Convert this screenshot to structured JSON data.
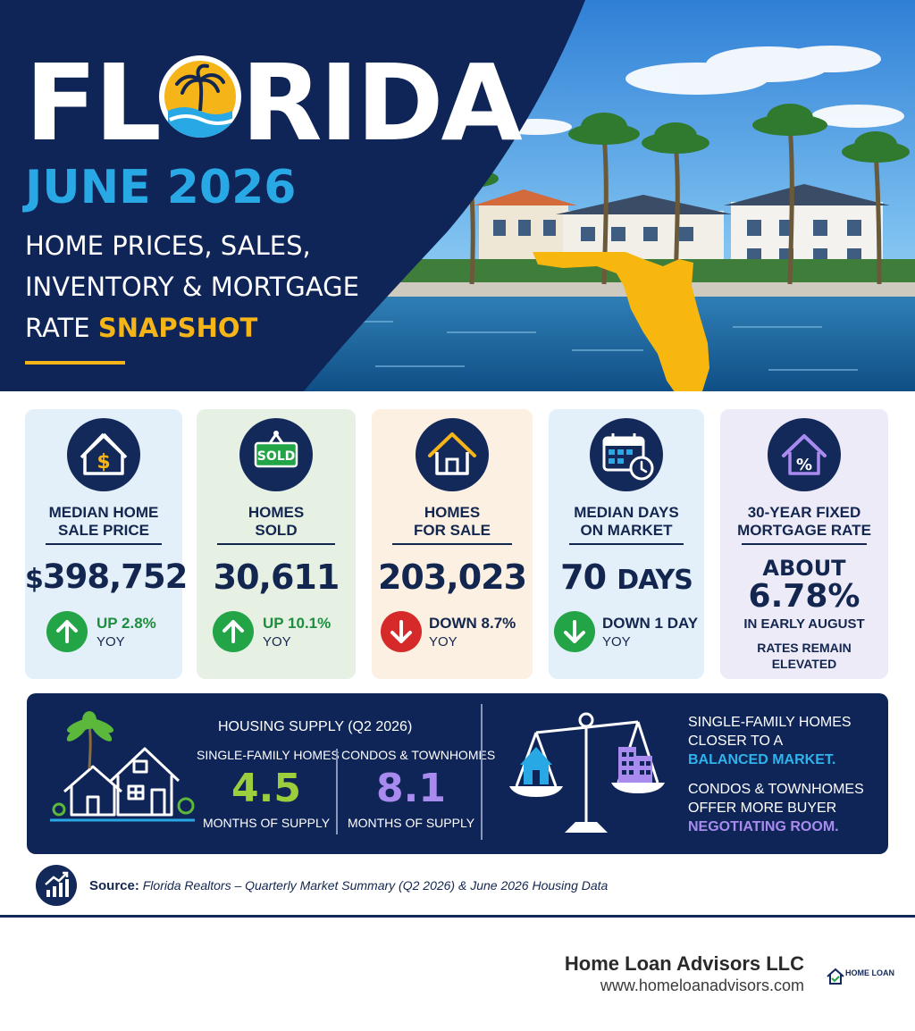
{
  "header": {
    "title_pre": "FL",
    "title_post": "RIDA",
    "date": "JUNE 2026",
    "subtitle_line1": "HOME PRICES, SALES,",
    "subtitle_line2": "INVENTORY & MORTGAGE",
    "subtitle_line3_pre": "RATE ",
    "subtitle_line3_highlight": "SNAPSHOT"
  },
  "stats": {
    "price": {
      "label_1": "MEDIAN HOME",
      "label_2": "SALE PRICE",
      "currency": "$",
      "value": "398,752",
      "change": "UP 2.8%",
      "period": "YOY"
    },
    "sold": {
      "icon_text": "SOLD",
      "label_1": "HOMES",
      "label_2": "SOLD",
      "value": "30,611",
      "change": "UP 10.1%",
      "period": "YOY"
    },
    "for_sale": {
      "label_1": "HOMES",
      "label_2": "FOR SALE",
      "value": "203,023",
      "change": "DOWN 8.7%",
      "period": "YOY"
    },
    "days": {
      "label_1": "MEDIAN DAYS",
      "label_2": "ON MARKET",
      "value": "70",
      "unit": "DAYS",
      "change": "DOWN 1 DAY",
      "period": "YOY"
    },
    "rate": {
      "icon_text": "%",
      "label_1": "30-YEAR FIXED",
      "label_2": "MORTGAGE RATE",
      "prefix": "ABOUT",
      "value": "6.78%",
      "when": "IN EARLY AUGUST",
      "note": "RATES REMAIN ELEVATED"
    }
  },
  "supply": {
    "title": "HOUSING SUPPLY (Q2 2026)",
    "single_family": {
      "label": "SINGLE-FAMILY HOMES",
      "value": "4.5",
      "unit": "MONTHS OF SUPPLY"
    },
    "condos": {
      "label": "CONDOS & TOWNHOMES",
      "value": "8.1",
      "unit": "MONTHS OF SUPPLY"
    },
    "msg1_a": "SINGLE-FAMILY HOMES",
    "msg1_b": "CLOSER TO A",
    "msg1_hl": "BALANCED MARKET.",
    "msg2_a": "CONDOS & TOWNHOMES",
    "msg2_b": "OFFER MORE BUYER",
    "msg2_hl": "NEGOTIATING ROOM."
  },
  "source": {
    "label": "Source:",
    "text": "Florida Realtors – Quarterly Market Summary (Q2 2026) & June 2026 Housing Data"
  },
  "footer": {
    "company": "Home Loan Advisors LLC",
    "website": "www.homeloanadvisors.com",
    "logo_text": "HOME LOAN"
  },
  "colors": {
    "navy": "#0f2557",
    "sky": "#28a9e6",
    "gold": "#f5b417",
    "green": "#22a447",
    "red": "#d62a2a",
    "lime": "#9ccd3c",
    "lavender": "#a98bf0"
  }
}
